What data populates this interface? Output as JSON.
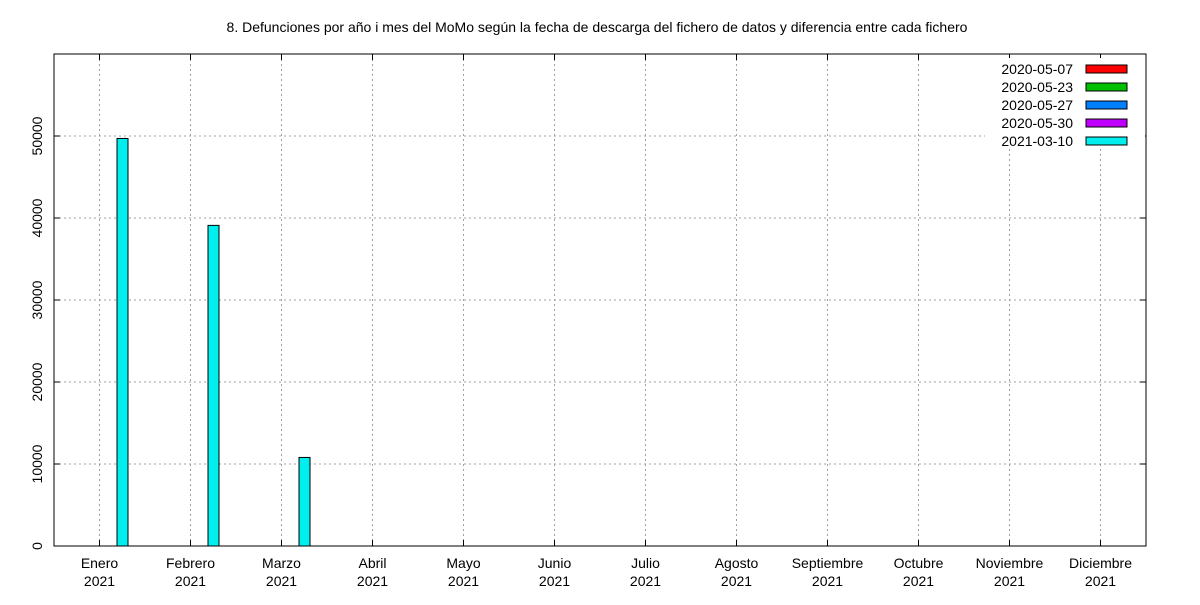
{
  "chart_data": {
    "type": "bar",
    "title": "8. Defunciones por año i mes del MoMo según la fecha de descarga del fichero de datos y diferencia entre cada fichero",
    "xlabel": "",
    "ylabel": "",
    "ylim": [
      0,
      60000
    ],
    "yticks": [
      0,
      10000,
      20000,
      30000,
      40000,
      50000
    ],
    "grid": true,
    "legend_position": "top-right",
    "categories": [
      {
        "month": "Enero",
        "year": "2021"
      },
      {
        "month": "Febrero",
        "year": "2021"
      },
      {
        "month": "Marzo",
        "year": "2021"
      },
      {
        "month": "Abril",
        "year": "2021"
      },
      {
        "month": "Mayo",
        "year": "2021"
      },
      {
        "month": "Junio",
        "year": "2021"
      },
      {
        "month": "Julio",
        "year": "2021"
      },
      {
        "month": "Agosto",
        "year": "2021"
      },
      {
        "month": "Septiembre",
        "year": "2021"
      },
      {
        "month": "Octubre",
        "year": "2021"
      },
      {
        "month": "Noviembre",
        "year": "2021"
      },
      {
        "month": "Diciembre",
        "year": "2021"
      }
    ],
    "series": [
      {
        "name": "2020-05-07",
        "color": "#ff0000",
        "values": [
          null,
          null,
          null,
          null,
          null,
          null,
          null,
          null,
          null,
          null,
          null,
          null
        ]
      },
      {
        "name": "2020-05-23",
        "color": "#00c000",
        "values": [
          null,
          null,
          null,
          null,
          null,
          null,
          null,
          null,
          null,
          null,
          null,
          null
        ]
      },
      {
        "name": "2020-05-27",
        "color": "#0080ff",
        "values": [
          null,
          null,
          null,
          null,
          null,
          null,
          null,
          null,
          null,
          null,
          null,
          null
        ]
      },
      {
        "name": "2020-05-30",
        "color": "#c000ff",
        "values": [
          null,
          null,
          null,
          null,
          null,
          null,
          null,
          null,
          null,
          null,
          null,
          null
        ]
      },
      {
        "name": "2021-03-10",
        "color": "#00eeee",
        "values": [
          49700,
          39100,
          10800,
          null,
          null,
          null,
          null,
          null,
          null,
          null,
          null,
          null
        ]
      }
    ]
  }
}
